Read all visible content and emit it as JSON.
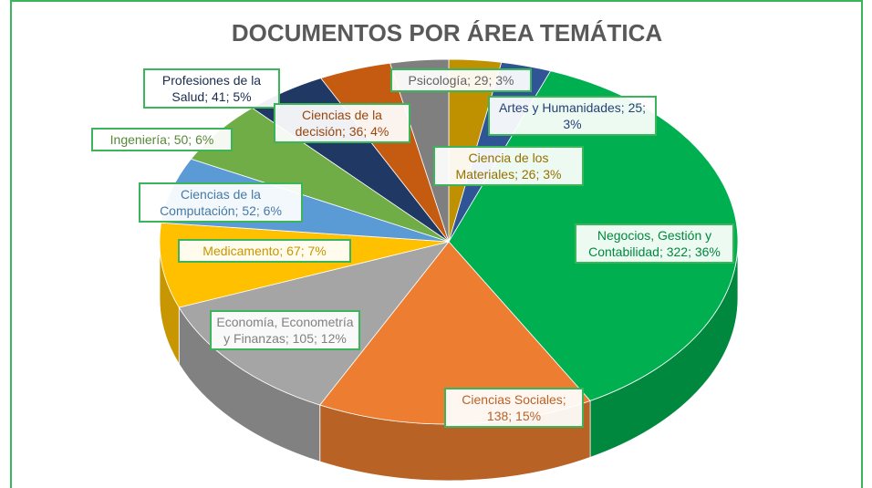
{
  "chart_data": {
    "type": "pie",
    "title": "DOCUMENTOS POR ÁREA TEMÁTICA",
    "categories": [
      "Ciencia de los Materiales",
      "Artes y Humanidades",
      "Negocios, Gestión y Contabilidad",
      "Ciencias Sociales",
      "Economía, Econometría y Finanzas",
      "Medicamento",
      "Ciencias de la Computación",
      "Ingeniería",
      "Profesiones de la Salud",
      "Ciencias de la decisión",
      "Psicología"
    ],
    "values": [
      26,
      25,
      322,
      138,
      105,
      67,
      52,
      50,
      41,
      36,
      29
    ],
    "value_labels": [
      "Ciencia de los Materiales; 26; 3%",
      "Artes y Humanidades; 25; 3%",
      "Negocios, Gestión y Contabilidad; 322; 36%",
      "Ciencias Sociales; 138; 15%",
      "Economía, Econometría y Finanzas; 105; 12%",
      "Medicamento; 67; 7%",
      "Ciencias de la Computación; 52; 6%",
      "Ingeniería; 50; 6%",
      "Profesiones de la Salud; 41; 5%",
      "Ciencias de la decisión; 36; 4%",
      "Psicología; 29; 3%"
    ],
    "colors": [
      "#bf9000",
      "#2f5597",
      "#00b050",
      "#ed7d31",
      "#a5a5a5",
      "#ffc000",
      "#5b9bd5",
      "#70ad47",
      "#203864",
      "#c55a11",
      "#7f7f7f"
    ]
  }
}
